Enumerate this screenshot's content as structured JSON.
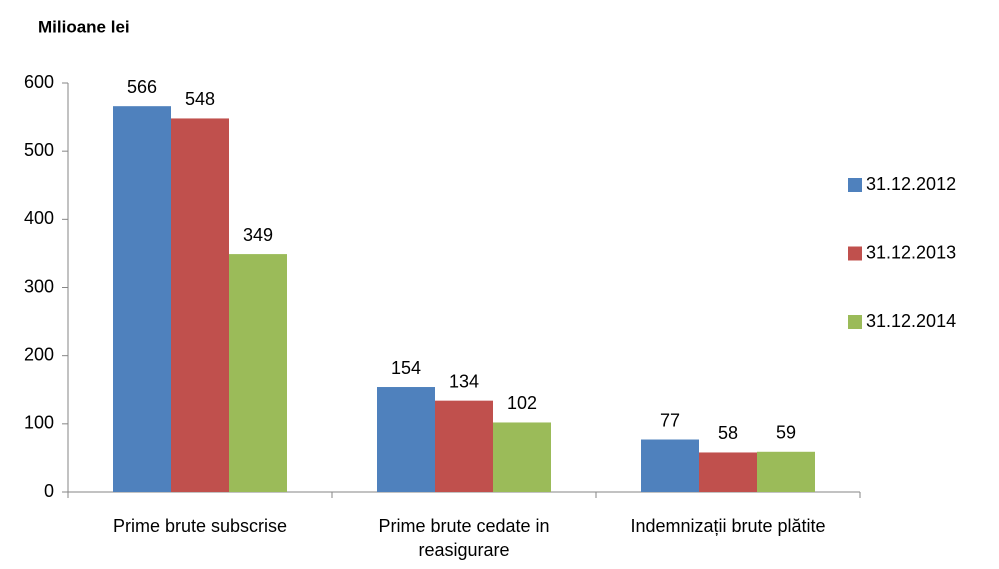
{
  "chart_data": {
    "type": "bar",
    "y_label": "Milioane lei",
    "categories": [
      "Prime brute subscrise",
      "Prime brute cedate in reasigurare",
      "Indemnizații brute plătite"
    ],
    "series": [
      {
        "name": "31.12.2012",
        "color": "#4f81bd",
        "values": [
          566,
          154,
          77
        ]
      },
      {
        "name": "31.12.2013",
        "color": "#c0504d",
        "values": [
          548,
          134,
          58
        ]
      },
      {
        "name": "31.12.2014",
        "color": "#9bbb59",
        "values": [
          349,
          102,
          59
        ]
      }
    ],
    "ylim": [
      0,
      600
    ],
    "yticks": [
      0,
      100,
      200,
      300,
      400,
      500,
      600
    ],
    "grid": false,
    "legend": "right"
  }
}
